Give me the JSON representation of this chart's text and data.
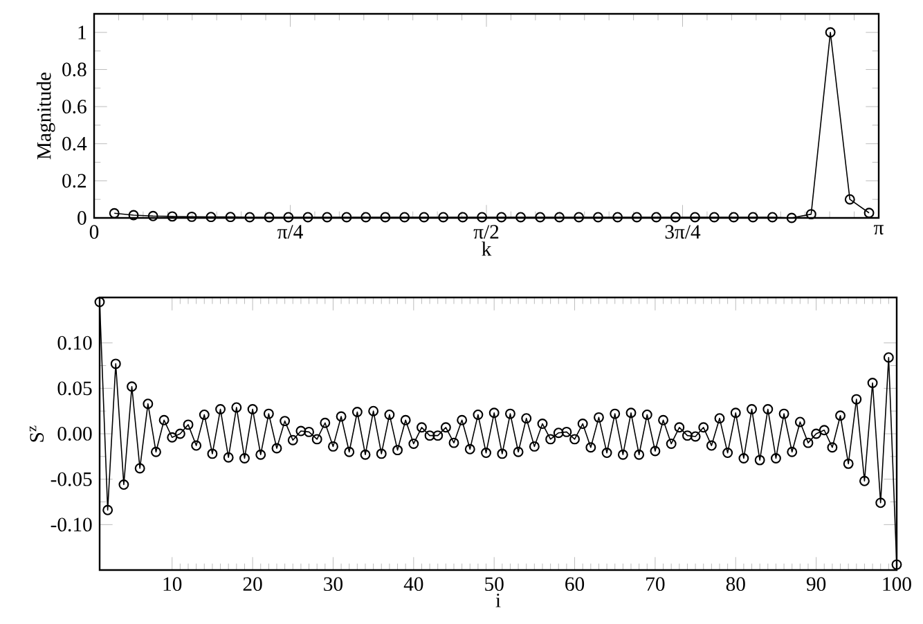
{
  "chart_data": [
    {
      "type": "line",
      "xlabel": "k",
      "ylabel": "Magnitude",
      "color": "#000000",
      "marker": "circle",
      "x": [
        0.081,
        0.158,
        0.236,
        0.313,
        0.391,
        0.468,
        0.546,
        0.623,
        0.701,
        0.778,
        0.856,
        0.933,
        1.011,
        1.088,
        1.166,
        1.243,
        1.321,
        1.398,
        1.476,
        1.553,
        1.631,
        1.708,
        1.786,
        1.863,
        1.941,
        2.018,
        2.096,
        2.173,
        2.251,
        2.328,
        2.406,
        2.483,
        2.561,
        2.638,
        2.716,
        2.793,
        2.871,
        2.948,
        3.026,
        3.103
      ],
      "values": [
        0.025,
        0.015,
        0.01,
        0.008,
        0.006,
        0.005,
        0.005,
        0.004,
        0.004,
        0.004,
        0.004,
        0.004,
        0.004,
        0.004,
        0.004,
        0.004,
        0.004,
        0.004,
        0.004,
        0.004,
        0.004,
        0.004,
        0.004,
        0.004,
        0.004,
        0.004,
        0.004,
        0.004,
        0.004,
        0.004,
        0.004,
        0.004,
        0.004,
        0.004,
        0.004,
        0,
        0.02,
        1.0,
        0.1,
        0.027
      ],
      "xlim": [
        0,
        3.1416
      ],
      "ylim": [
        0,
        1.1
      ],
      "xticks": [
        {
          "value": 0,
          "label": "0"
        },
        {
          "value": 0.7854,
          "label": "π/4"
        },
        {
          "value": 1.5708,
          "label": "π/2"
        },
        {
          "value": 2.3562,
          "label": "3π/4"
        },
        {
          "value": 3.1416,
          "label": "π"
        }
      ],
      "yticks": [
        0,
        0.2,
        0.4,
        0.6,
        0.8,
        1
      ]
    },
    {
      "type": "line",
      "xlabel": "i",
      "ylabel": "S$^{z}$",
      "color": "#000000",
      "marker": "circle",
      "x": [
        1,
        2,
        3,
        4,
        5,
        6,
        7,
        8,
        9,
        10,
        11,
        12,
        13,
        14,
        15,
        16,
        17,
        18,
        19,
        20,
        21,
        22,
        23,
        24,
        25,
        26,
        27,
        28,
        29,
        30,
        31,
        32,
        33,
        34,
        35,
        36,
        37,
        38,
        39,
        40,
        41,
        42,
        43,
        44,
        45,
        46,
        47,
        48,
        49,
        50,
        51,
        52,
        53,
        54,
        55,
        56,
        57,
        58,
        59,
        60,
        61,
        62,
        63,
        64,
        65,
        66,
        67,
        68,
        69,
        70,
        71,
        72,
        73,
        74,
        75,
        76,
        77,
        78,
        79,
        80,
        81,
        82,
        83,
        84,
        85,
        86,
        87,
        88,
        89,
        90,
        91,
        92,
        93,
        94,
        95,
        96,
        97,
        98,
        99,
        100
      ],
      "values": [
        0.145,
        -0.084,
        0.077,
        -0.056,
        0.052,
        -0.038,
        0.033,
        -0.02,
        0.015,
        -0.004,
        0.0,
        0.01,
        -0.013,
        0.021,
        -0.022,
        0.027,
        -0.026,
        0.029,
        -0.027,
        0.027,
        -0.023,
        0.022,
        -0.016,
        0.014,
        -0.007,
        0.003,
        0.002,
        -0.006,
        0.012,
        -0.014,
        0.019,
        -0.02,
        0.024,
        -0.023,
        0.025,
        -0.022,
        0.021,
        -0.018,
        0.015,
        -0.011,
        0.007,
        -0.002,
        -0.002,
        0.007,
        -0.01,
        0.015,
        -0.017,
        0.021,
        -0.021,
        0.023,
        -0.022,
        0.022,
        -0.02,
        0.017,
        -0.014,
        0.011,
        -0.006,
        0.001,
        0.002,
        -0.006,
        0.011,
        -0.015,
        0.018,
        -0.021,
        0.022,
        -0.023,
        0.023,
        -0.023,
        0.021,
        -0.019,
        0.015,
        -0.011,
        0.007,
        -0.002,
        -0.003,
        0.007,
        -0.013,
        0.017,
        -0.021,
        0.023,
        -0.027,
        0.027,
        -0.029,
        0.027,
        -0.027,
        0.022,
        -0.02,
        0.013,
        -0.01,
        0.0,
        0.004,
        -0.015,
        0.02,
        -0.033,
        0.038,
        -0.052,
        0.056,
        -0.076,
        0.084,
        -0.144
      ],
      "xlim": [
        1,
        100
      ],
      "ylim": [
        -0.15,
        0.15
      ],
      "xticks": [
        10,
        20,
        30,
        40,
        50,
        60,
        70,
        80,
        90,
        100
      ],
      "yticks": [
        {
          "value": -0.1,
          "label": "-0.10"
        },
        {
          "value": -0.05,
          "label": "-0.05"
        },
        {
          "value": 0,
          "label": "0.00"
        },
        {
          "value": 0.05,
          "label": "0.05"
        },
        {
          "value": 0.1,
          "label": "0.10"
        }
      ]
    }
  ]
}
